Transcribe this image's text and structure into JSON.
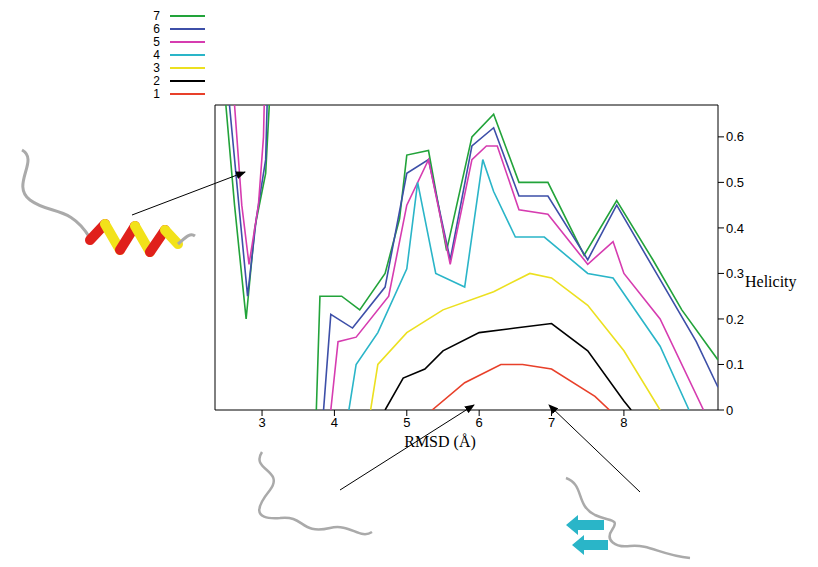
{
  "chart_data": {
    "type": "line",
    "x_label": "RMSD (Å)",
    "y_label": "Helicity",
    "xlim": [
      2.35,
      9.3
    ],
    "xticks": [
      3,
      4,
      5,
      6,
      7,
      8
    ],
    "ylim": [
      0,
      0.67
    ],
    "yticks": [
      0,
      0.1,
      0.2,
      0.3,
      0.4,
      0.5,
      0.6
    ],
    "legend": "top left",
    "grid": false,
    "series": [
      {
        "name": "7",
        "color": "#22a33a",
        "x": [
          2.5,
          2.62,
          2.78,
          2.9,
          3.05,
          3.1,
          null,
          3.75,
          3.8,
          4.1,
          4.35,
          4.7,
          4.9,
          5.0,
          5.3,
          5.55,
          5.9,
          6.2,
          6.55,
          6.95,
          7.45,
          7.9,
          8.4,
          8.8,
          9.3
        ],
        "values": [
          0.67,
          0.45,
          0.2,
          0.4,
          0.52,
          0.67,
          null,
          0,
          0.25,
          0.25,
          0.22,
          0.3,
          0.42,
          0.56,
          0.57,
          0.35,
          0.6,
          0.65,
          0.5,
          0.5,
          0.34,
          0.46,
          0.33,
          0.22,
          0.11
        ]
      },
      {
        "name": "6",
        "color": "#3d4fa8",
        "x": [
          2.55,
          2.68,
          2.8,
          2.92,
          3.05,
          3.07,
          null,
          3.85,
          3.95,
          4.25,
          4.7,
          5.0,
          5.3,
          5.6,
          5.9,
          6.2,
          6.55,
          6.95,
          7.5,
          7.9,
          8.45,
          9.0,
          9.3
        ],
        "values": [
          0.67,
          0.45,
          0.25,
          0.42,
          0.55,
          0.67,
          null,
          0,
          0.21,
          0.18,
          0.27,
          0.52,
          0.55,
          0.33,
          0.58,
          0.62,
          0.47,
          0.47,
          0.33,
          0.45,
          0.3,
          0.15,
          0.05
        ]
      },
      {
        "name": "5",
        "color": "#d63cb0",
        "x": [
          2.62,
          2.72,
          2.82,
          2.95,
          3.02,
          3.03,
          null,
          3.95,
          4.05,
          4.3,
          4.75,
          5.0,
          5.3,
          5.6,
          5.9,
          6.1,
          6.25,
          6.55,
          6.95,
          7.5,
          7.85,
          8.0,
          8.5,
          9.1
        ],
        "values": [
          0.67,
          0.45,
          0.32,
          0.45,
          0.6,
          0.67,
          null,
          0,
          0.15,
          0.16,
          0.25,
          0.45,
          0.55,
          0.32,
          0.55,
          0.58,
          0.58,
          0.44,
          0.43,
          0.32,
          0.37,
          0.3,
          0.2,
          0
        ]
      },
      {
        "name": "4",
        "color": "#2ab5c8",
        "x": [
          4.2,
          4.3,
          4.6,
          5.0,
          5.15,
          5.4,
          5.8,
          6.05,
          6.2,
          6.5,
          6.9,
          7.5,
          7.85,
          8.5,
          8.9
        ],
        "values": [
          0,
          0.1,
          0.17,
          0.31,
          0.5,
          0.3,
          0.27,
          0.55,
          0.48,
          0.38,
          0.38,
          0.3,
          0.29,
          0.14,
          0
        ]
      },
      {
        "name": "3",
        "color": "#ece020",
        "x": [
          4.5,
          4.6,
          5.0,
          5.5,
          6.2,
          6.7,
          7.0,
          7.5,
          8.0,
          8.5
        ],
        "values": [
          0,
          0.1,
          0.17,
          0.22,
          0.26,
          0.3,
          0.29,
          0.23,
          0.13,
          0
        ]
      },
      {
        "name": "2",
        "color": "#000000",
        "x": [
          4.7,
          4.95,
          5.25,
          5.5,
          6.0,
          6.5,
          7.0,
          7.5,
          8.0,
          8.1
        ],
        "values": [
          0,
          0.07,
          0.09,
          0.13,
          0.17,
          0.18,
          0.19,
          0.13,
          0.02,
          0
        ]
      },
      {
        "name": "1",
        "color": "#e8402a",
        "x": [
          5.35,
          5.8,
          6.3,
          6.6,
          7.0,
          7.6,
          7.8
        ],
        "values": [
          0,
          0.06,
          0.1,
          0.1,
          0.09,
          0.03,
          0
        ]
      }
    ]
  }
}
